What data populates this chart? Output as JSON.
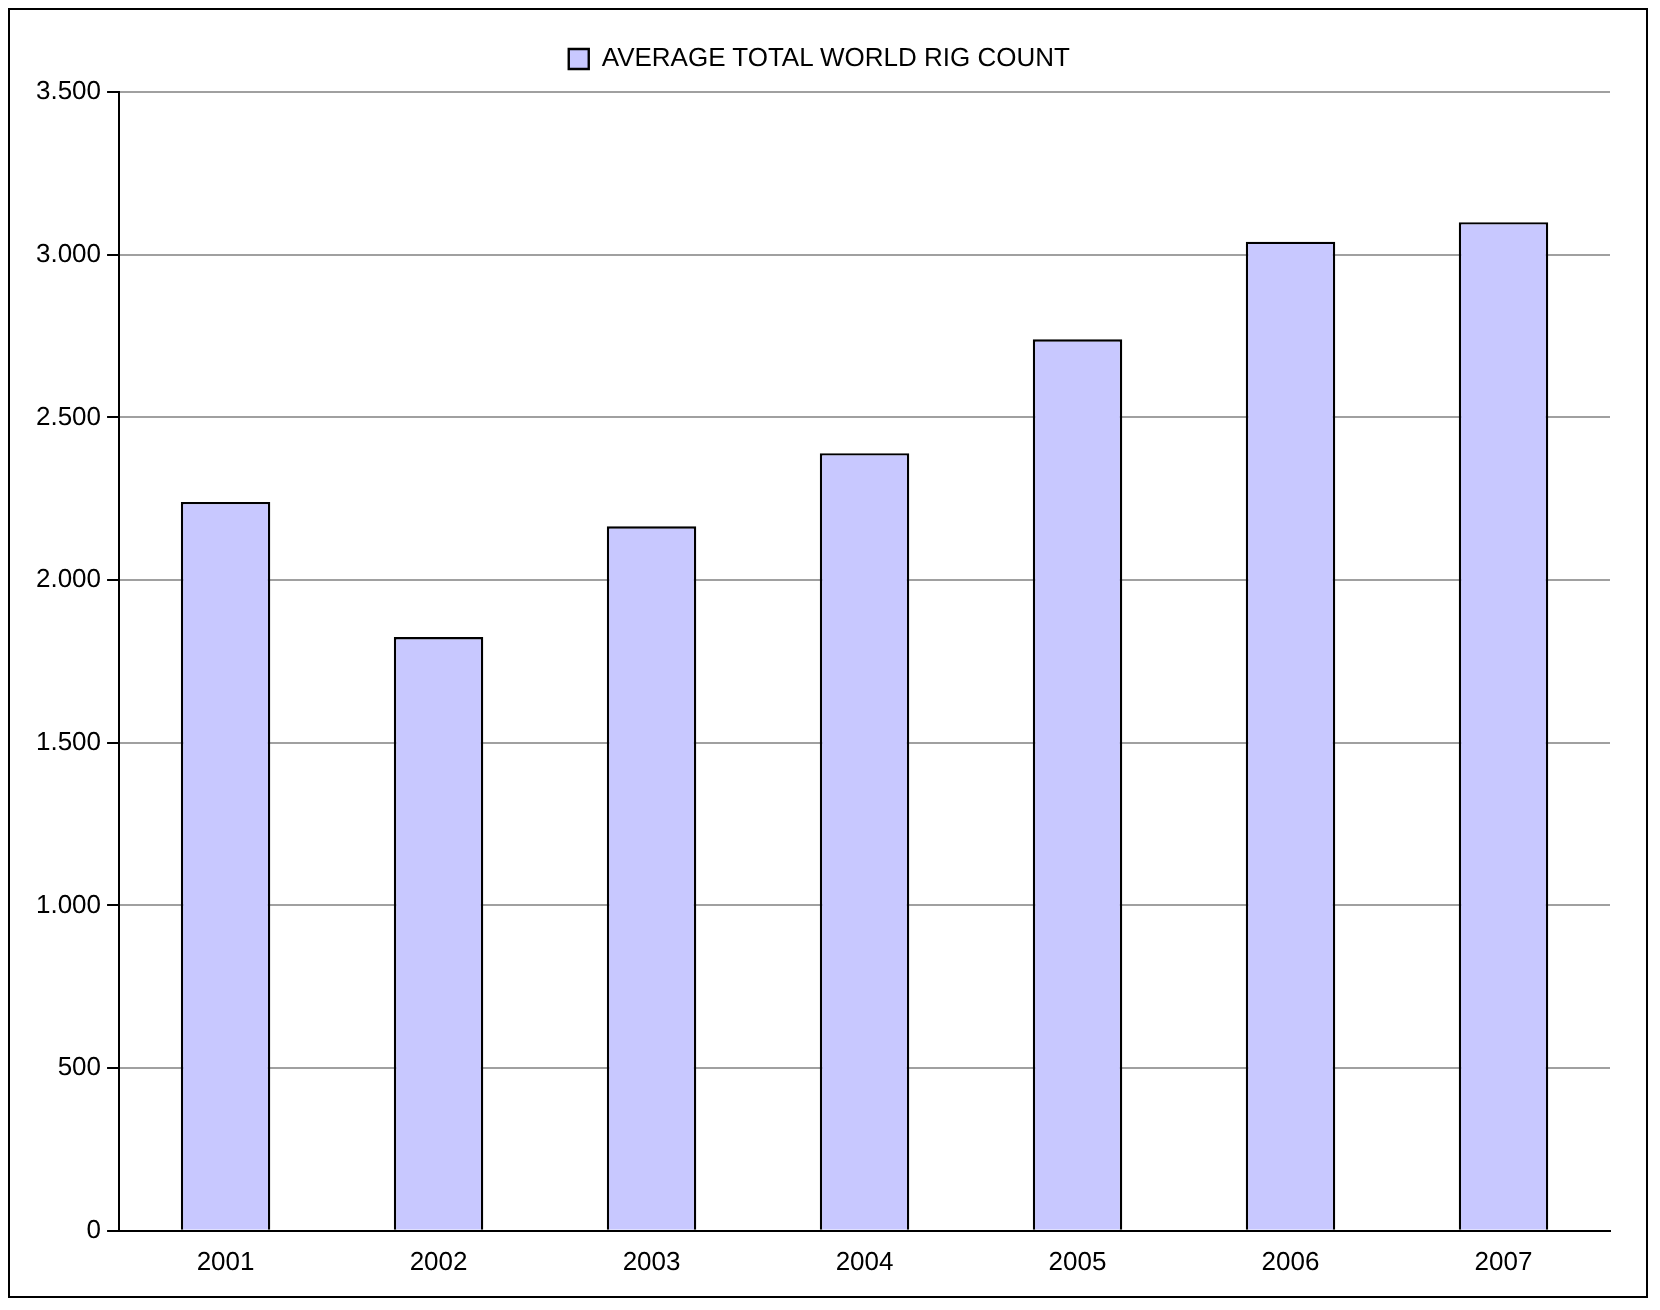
{
  "chart_data": {
    "type": "bar",
    "categories": [
      "2001",
      "2002",
      "2003",
      "2004",
      "2005",
      "2006",
      "2007"
    ],
    "series": [
      {
        "name": "AVERAGE TOTAL WORLD RIG COUNT",
        "color": "#c8c8ff",
        "values": [
          2240,
          1825,
          2165,
          2390,
          2740,
          3040,
          3100
        ]
      }
    ],
    "ylim": [
      0,
      3500
    ],
    "yticks": [
      {
        "value": 0,
        "label": "0"
      },
      {
        "value": 500,
        "label": "500"
      },
      {
        "value": 1000,
        "label": "1.000"
      },
      {
        "value": 1500,
        "label": "1.500"
      },
      {
        "value": 2000,
        "label": "2.000"
      },
      {
        "value": 2500,
        "label": "2.500"
      },
      {
        "value": 3000,
        "label": "3.000"
      },
      {
        "value": 3500,
        "label": "3.500"
      }
    ],
    "grid": "y",
    "legend": "top"
  }
}
